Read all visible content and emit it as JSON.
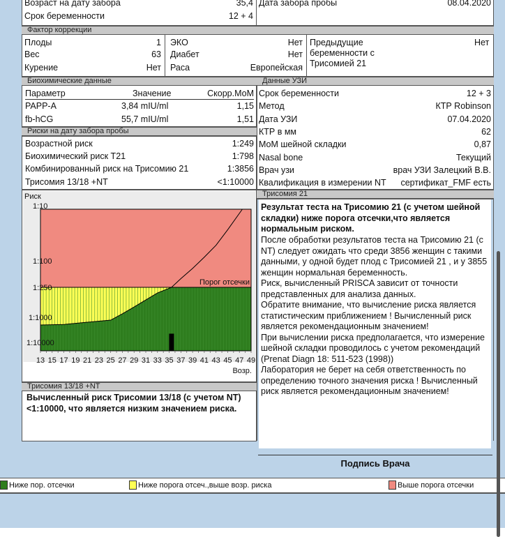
{
  "top": {
    "age_label": "Возраст на дату забора",
    "age_value": "35,4",
    "ga_label": "Срок беременности",
    "ga_value": "12 + 4",
    "sample_date_label": "Дата забора пробы",
    "sample_date_value": "08.04.2020"
  },
  "correction": {
    "title": "Фактор коррекции",
    "fetuses_label": "Плоды",
    "fetuses_value": "1",
    "weight_label": "Вес",
    "weight_value": "63",
    "smoking_label": "Курение",
    "smoking_value": "Нет",
    "ivf_label": "ЭКО",
    "ivf_value": "Нет",
    "diabetes_label": "Диабет",
    "diabetes_value": "Нет",
    "race_label": "Раса",
    "race_value": "Европейская",
    "prev_label": "Предыдущие беременности с Трисомией 21",
    "prev_value": "Нет"
  },
  "biochem": {
    "title": "Биохимические данные",
    "headers": [
      "Параметр",
      "Значение",
      "Скорр.МоМ"
    ],
    "rows": [
      [
        "PAPP-A",
        "3,84 mIU/ml",
        "1,15"
      ],
      [
        "fb-hCG",
        "55,7 mIU/ml",
        "1,51"
      ]
    ]
  },
  "risks": {
    "title": "Риски на дату забора пробы",
    "rows": [
      [
        "Возрастной риск",
        "1:249"
      ],
      [
        "Биохимический риск T21",
        "1:798"
      ],
      [
        "Комбинированный риск на Трисомию 21",
        "1:3856"
      ],
      [
        "Трисомия 13/18 +NT",
        "<1:10000"
      ]
    ]
  },
  "usi": {
    "title": "Данные УЗИ",
    "rows": [
      [
        "Срок беременности",
        "12 + 3"
      ],
      [
        "Метод",
        "КТР Robinson"
      ],
      [
        "Дата УЗИ",
        "07.04.2020"
      ],
      [
        "КТР в мм",
        "62"
      ],
      [
        "МоМ шейной складки",
        "0,87"
      ],
      [
        "Nasal bone",
        "Текущий"
      ],
      [
        "Врач узи",
        "врач УЗИ Залецкий В.В."
      ],
      [
        "Квалификация в измерении NT",
        "сертификат_FMF есть"
      ]
    ]
  },
  "chart_data": {
    "type": "area",
    "ylabel": "Риск",
    "xlabel": "Возр.",
    "threshold_label": "Порог отсечки",
    "threshold": 250,
    "y_ticks": [
      "1:10",
      "1:100",
      "1:250",
      "1:1000",
      "1:10000"
    ],
    "y_tick_values": [
      10,
      100,
      250,
      1000,
      10000
    ],
    "x_ticks": [
      13,
      15,
      17,
      19,
      21,
      23,
      25,
      27,
      29,
      31,
      33,
      35,
      37,
      39,
      41,
      43,
      45,
      47,
      49
    ],
    "xlim": [
      13,
      49
    ],
    "age_risk_curve": [
      [
        13,
        1880
      ],
      [
        17,
        1800
      ],
      [
        21,
        1500
      ],
      [
        25,
        1260
      ],
      [
        27,
        850
      ],
      [
        29,
        620
      ],
      [
        31,
        447
      ],
      [
        33,
        324
      ],
      [
        35.4,
        250
      ],
      [
        37,
        185
      ],
      [
        39,
        130
      ],
      [
        41,
        85
      ],
      [
        43,
        50
      ],
      [
        45,
        25
      ],
      [
        47.5,
        10
      ]
    ],
    "patient_marker": {
      "age": 35.4,
      "risk": 3856
    },
    "colors": {
      "below": "#2e7d1e",
      "between": "#ffff55",
      "above": "#f08a80"
    }
  },
  "t21": {
    "title": "Трисомия 21",
    "bold": "Результат теста на Трисомию 21 (с учетом шейной складки) ниже порога отсечки,что является нормальным риском.",
    "body": "После обработки результатов теста на Трисомию 21 (с NT) следует ожидать что среди 3856 женщин с такими данными, у одной будет плод с Трисомией 21 , и у 3855 женщин нормальная беременность.\nРиск, вычисленный PRISCA зависит от точности представленных для анализа данных.\nОбратите внимание, что вычисление риска является статистическим приближением ! Вычисленный риск является рекомендационным значением!\nПри вычислении риска предполагается, что измерение шейной складки проводилось с учетом рекомендаций (Prenat Diagn 18: 511-523 (1998))\nЛаборатория не берет на себя ответственность по определению точного значения риска ! Вычисленный риск является рекомендационным значением!"
  },
  "t1318": {
    "title": "Трисомия 13/18 +NT",
    "text": "Вычисленный риск Трисомии 13/18 (с учетом NT) <1:10000, что является низким значением риска."
  },
  "signature": "Подпись Врача",
  "legend": [
    "Ниже пор. отсечки",
    "Ниже порога отсеч.,выше возр. риска",
    "Выше порога отсечки"
  ]
}
